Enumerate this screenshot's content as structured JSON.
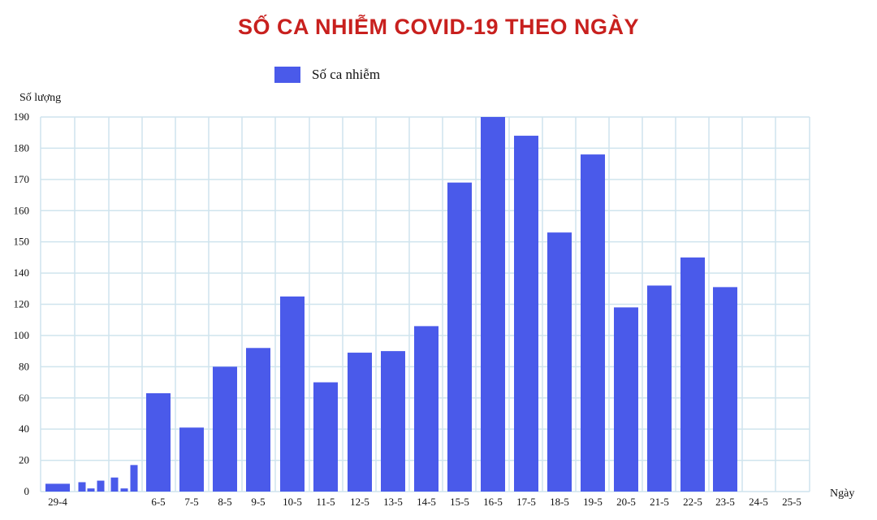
{
  "chart_data": {
    "type": "bar",
    "title": "SỐ CA NHIỄM COVID-19 THEO NGÀY",
    "ylabel": "Số lượng",
    "xlabel": "Ngày",
    "ylim": [
      0,
      190
    ],
    "yticks": [
      "0",
      "20",
      "40",
      "60",
      "80",
      "100",
      "120",
      "140",
      "150",
      "160",
      "170",
      "180",
      "190"
    ],
    "grid": true,
    "legend_position": "top-left",
    "categories": [
      "29-4",
      "",
      "",
      "",
      "",
      "",
      "",
      "",
      "6-5",
      "7-5",
      "8-5",
      "9-5",
      "10-5",
      "11-5",
      "12-5",
      "13-5",
      "14-5",
      "15-5",
      "16-5",
      "17-5",
      "18-5",
      "19-5",
      "20-5",
      "21-5",
      "22-5",
      "23-5",
      "24-5",
      "25-5"
    ],
    "series": [
      {
        "name": "Số ca nhiễm",
        "color": "#4a5aea",
        "values": [
          5,
          6,
          2,
          7,
          9,
          2,
          17,
          null,
          63,
          41,
          80,
          92,
          125,
          70,
          89,
          90,
          106,
          169,
          190,
          184,
          153,
          178,
          118,
          132,
          145,
          131,
          0,
          0
        ]
      }
    ],
    "colors": {
      "title": "#c8201e",
      "grid": "#cfe4ee",
      "bar": "#4a5aea"
    }
  }
}
